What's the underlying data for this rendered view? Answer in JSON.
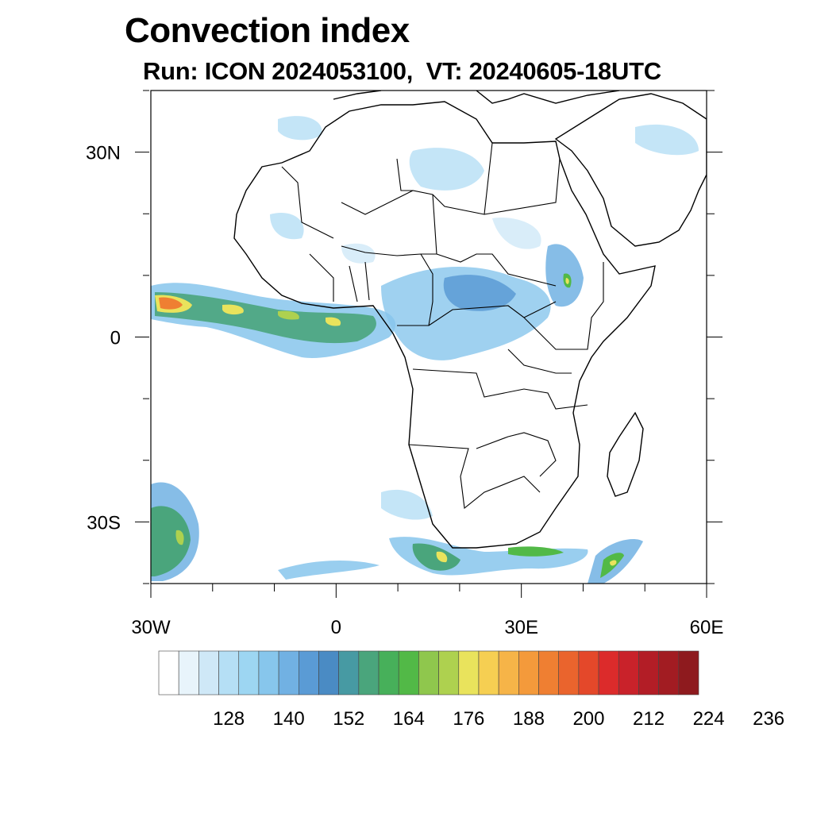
{
  "title": "Convection index",
  "subtitle": "Run: ICON 2024053100,  VT: 20240605-18UTC",
  "map": {
    "lon_range": [
      -30,
      60
    ],
    "lat_range": [
      -40,
      40
    ],
    "lat_ticks": [
      {
        "lat": 30,
        "label": "30N"
      },
      {
        "lat": 0,
        "label": "0"
      },
      {
        "lat": -30,
        "label": "30S"
      }
    ],
    "lon_ticks": [
      {
        "lon": -30,
        "label": "30W"
      },
      {
        "lon": 0,
        "label": "0"
      },
      {
        "lon": 30,
        "label": "30E"
      },
      {
        "lon": 60,
        "label": "60E"
      }
    ]
  },
  "colorbar": {
    "colors": [
      "#ffffff",
      "#e8f4fb",
      "#cfe8f7",
      "#b5dff5",
      "#9dd6f2",
      "#87c6ec",
      "#71b1e3",
      "#5a9bd5",
      "#4a8bc4",
      "#479aa3",
      "#4aa57c",
      "#47b05a",
      "#52b947",
      "#8fc74d",
      "#aed14f",
      "#e9e35c",
      "#f6cf52",
      "#f6b448",
      "#f49a3b",
      "#ef7f32",
      "#ea642d",
      "#e4482a",
      "#dc2b2b",
      "#c9222a",
      "#b31d26",
      "#a21c22",
      "#8e1a1e"
    ],
    "labels": [
      "128",
      "140",
      "152",
      "164",
      "176",
      "188",
      "200",
      "212",
      "224",
      "236"
    ],
    "label_bins": [
      3,
      6,
      9,
      12,
      15,
      18,
      21,
      24,
      27,
      30
    ]
  }
}
